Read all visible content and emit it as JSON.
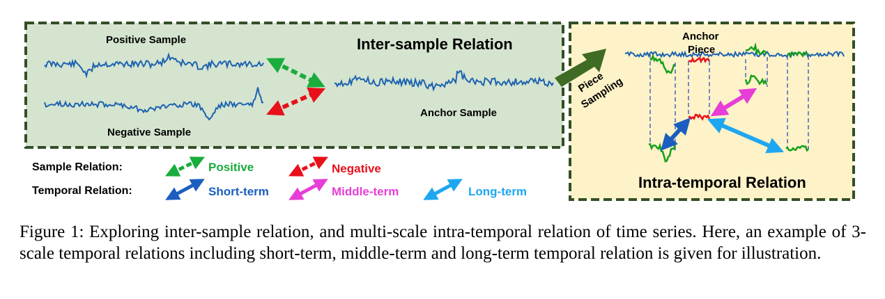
{
  "inter_panel": {
    "title": "Inter-sample Relation",
    "positive_sample_label": "Positive Sample",
    "negative_sample_label": "Negative Sample",
    "anchor_sample_label": "Anchor Sample"
  },
  "transition": {
    "line1": "Piece",
    "line2": "Sampling"
  },
  "intra_panel": {
    "title": "Intra-temporal Relation",
    "anchor_piece_line1": "Anchor",
    "anchor_piece_line2": "Piece"
  },
  "legend": {
    "sample_relation_label": "Sample Relation:",
    "temporal_relation_label": "Temporal Relation:",
    "positive": "Positive",
    "negative": "Negative",
    "short_term": "Short-term",
    "middle_term": "Middle-term",
    "long_term": "Long-term"
  },
  "colors": {
    "positive": "#1aac3c",
    "negative": "#e8101a",
    "short_term": "#1b5ebf",
    "middle_term": "#e63ed6",
    "long_term": "#1ea7f0",
    "series": "#1c62b0",
    "green_series": "#16a01c",
    "inter_bg": "#d5e4cf",
    "intra_bg": "#fdf2c8",
    "border": "#344e26"
  },
  "caption": "Figure 1: Exploring inter-sample relation, and multi-scale intra-temporal relation of time series. Here, an example of 3-scale temporal relations including short-term, middle-term and long-term temporal relation is given for illustration."
}
